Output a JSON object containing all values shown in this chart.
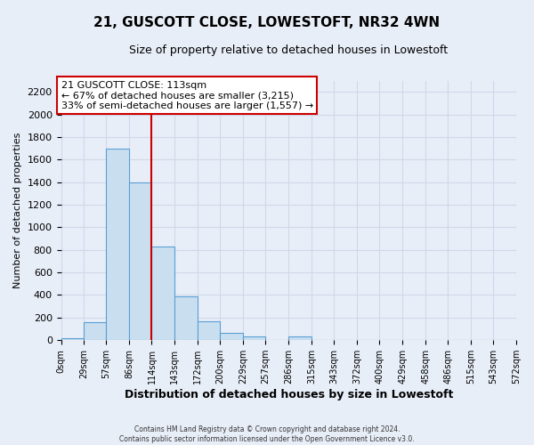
{
  "title": "21, GUSCOTT CLOSE, LOWESTOFT, NR32 4WN",
  "subtitle": "Size of property relative to detached houses in Lowestoft",
  "xlabel": "Distribution of detached houses by size in Lowestoft",
  "ylabel": "Number of detached properties",
  "bin_labels": [
    "0sqm",
    "29sqm",
    "57sqm",
    "86sqm",
    "114sqm",
    "143sqm",
    "172sqm",
    "200sqm",
    "229sqm",
    "257sqm",
    "286sqm",
    "315sqm",
    "343sqm",
    "372sqm",
    "400sqm",
    "429sqm",
    "458sqm",
    "486sqm",
    "515sqm",
    "543sqm",
    "572sqm"
  ],
  "bar_values": [
    15,
    160,
    1700,
    1400,
    830,
    390,
    165,
    65,
    30,
    0,
    30,
    0,
    0,
    0,
    0,
    0,
    0,
    0,
    0,
    0
  ],
  "bar_color": "#c9dff0",
  "bar_edge_color": "#5a9fd4",
  "grid_color": "#d0d8e8",
  "background_color": "#e8eef8",
  "plot_bg_color": "#e8eef8",
  "property_line_x": 114,
  "property_line_color": "#cc0000",
  "annotation_title": "21 GUSCOTT CLOSE: 113sqm",
  "annotation_line1": "← 67% of detached houses are smaller (3,215)",
  "annotation_line2": "33% of semi-detached houses are larger (1,557) →",
  "annotation_box_color": "#ffffff",
  "annotation_box_edge": "#cc0000",
  "ylim": [
    0,
    2300
  ],
  "yticks": [
    0,
    200,
    400,
    600,
    800,
    1000,
    1200,
    1400,
    1600,
    1800,
    2000,
    2200
  ],
  "bin_edges": [
    0,
    29,
    57,
    86,
    114,
    143,
    172,
    200,
    229,
    257,
    286,
    315,
    343,
    372,
    400,
    429,
    458,
    486,
    515,
    543,
    572
  ],
  "footer1": "Contains HM Land Registry data © Crown copyright and database right 2024.",
  "footer2": "Contains public sector information licensed under the Open Government Licence v3.0."
}
